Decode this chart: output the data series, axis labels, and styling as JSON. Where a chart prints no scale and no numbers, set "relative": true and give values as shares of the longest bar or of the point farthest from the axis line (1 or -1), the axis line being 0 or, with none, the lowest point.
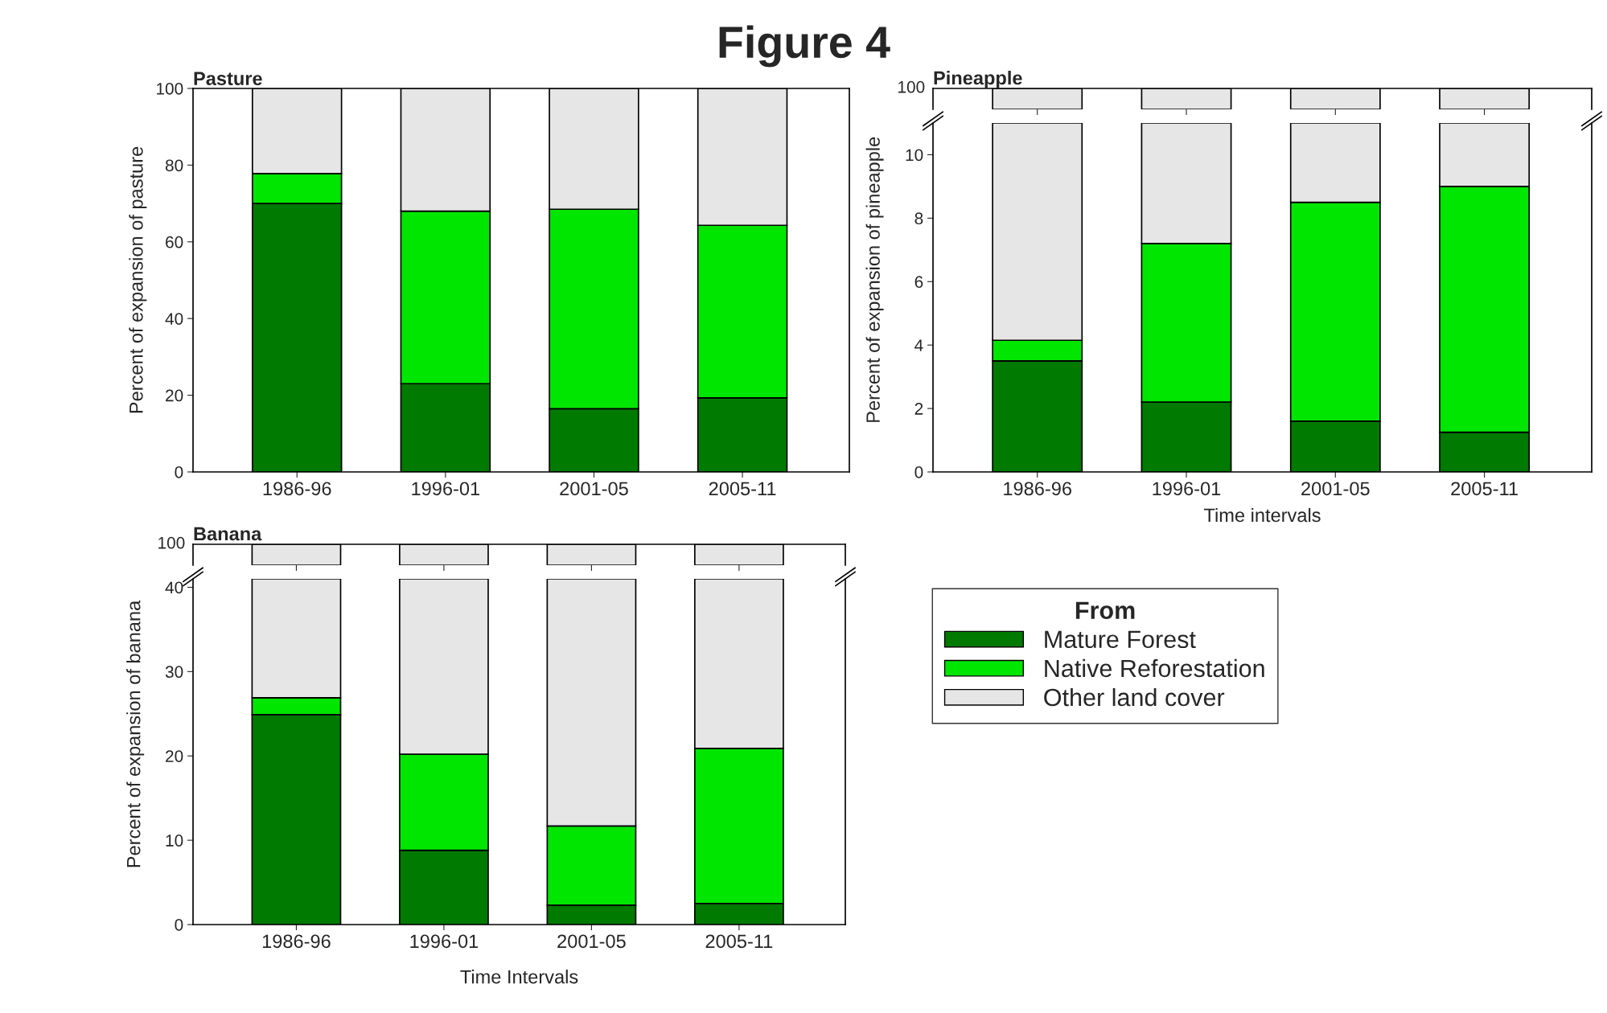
{
  "chart_data": [
    {
      "type": "other",
      "title": "Figure 4"
    },
    {
      "type": "bar",
      "title": "Pasture",
      "stacked": true,
      "categories": [
        "1986-96",
        "1996-01",
        "2001-05",
        "2005-11"
      ],
      "ylabel": "Percent of expansion of pasture",
      "ylim": [
        0,
        100
      ],
      "yticks": [
        0,
        20,
        40,
        60,
        80,
        100
      ],
      "series": [
        {
          "color": "#007a00",
          "values": [
            70,
            23,
            16.5,
            19.3
          ]
        },
        {
          "color": "#00e600",
          "values": [
            7.8,
            45,
            52,
            45
          ]
        },
        {
          "color": "#e6e6e6",
          "values": [
            22.2,
            32,
            31.5,
            35.7
          ]
        }
      ]
    },
    {
      "type": "bar",
      "title": "Pineapple",
      "stacked": true,
      "relative": true,
      "categories": [
        null,
        null,
        null,
        null
      ],
      "annotations": [
        "100"
      ],
      "series": [
        {
          "color": "#e6e6e6",
          "values": [
            1,
            1,
            1,
            1
          ]
        }
      ]
    },
    {
      "type": "bar",
      "stacked": true,
      "categories": [
        "1986-96",
        "1996-01",
        "2001-05",
        "2005-11"
      ],
      "xlabel": "Time intervals",
      "ylabel": "Percent of expansion of pineapple",
      "ylim": [
        0,
        11
      ],
      "yticks": [
        0,
        2,
        4,
        6,
        8,
        10
      ],
      "series": [
        {
          "color": "#007a00",
          "values": [
            3.5,
            2.2,
            1.6,
            1.25
          ]
        },
        {
          "color": "#00e600",
          "values": [
            0.65,
            5.0,
            6.9,
            7.75
          ]
        },
        {
          "color": "#e6e6e6",
          "values": [
            6.85,
            3.8,
            2.5,
            2.0
          ]
        }
      ]
    },
    {
      "type": "bar",
      "title": "Banana",
      "stacked": true,
      "relative": true,
      "categories": [
        null,
        null,
        null,
        null
      ],
      "annotations": [
        "100"
      ],
      "series": [
        {
          "color": "#e6e6e6",
          "values": [
            1,
            1,
            1,
            1
          ]
        }
      ]
    },
    {
      "type": "bar",
      "stacked": true,
      "categories": [
        "1986-96",
        "1996-01",
        "2001-05",
        "2005-11"
      ],
      "xlabel": "Time Intervals",
      "ylabel": "Percent of expansion of banana",
      "ylim": [
        0,
        41
      ],
      "yticks": [
        0,
        10,
        20,
        30,
        40
      ],
      "legend": "right",
      "legend_title": "From",
      "series": [
        {
          "name": "Mature Forest",
          "color": "#007a00",
          "values": [
            24.9,
            8.8,
            2.3,
            2.5
          ]
        },
        {
          "name": "Native Reforestation",
          "color": "#00e600",
          "values": [
            2.0,
            11.4,
            9.4,
            18.4
          ]
        },
        {
          "name": "Other land cover",
          "color": "#e6e6e6",
          "values": [
            14.1,
            20.8,
            29.3,
            20.1
          ]
        }
      ]
    }
  ]
}
